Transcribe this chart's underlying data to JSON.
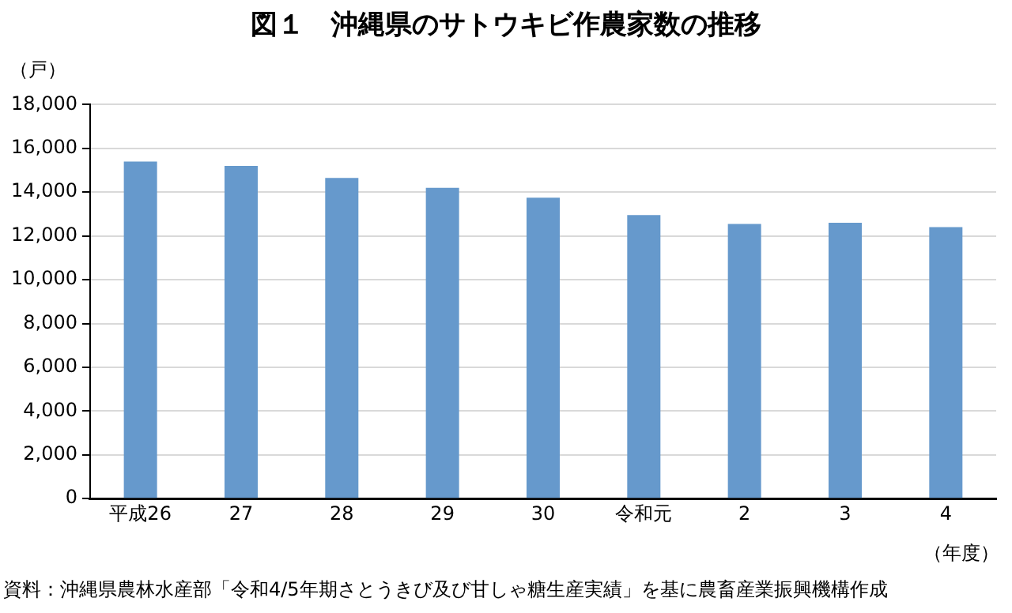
{
  "chart_data": {
    "type": "bar",
    "title": "図１　沖縄県のサトウキビ作農家数の推移",
    "ylabel": "（戸）",
    "xlabel": "（年度）",
    "annotations": [
      "資料：沖縄県農林水産部「令和4/5年期さとうきび及び甘しゃ糖生産実績」を基に農畜産業振興機構作成"
    ],
    "categories": [
      "平成26",
      "27",
      "28",
      "29",
      "30",
      "令和元",
      "2",
      "3",
      "4"
    ],
    "values": [
      15400,
      15200,
      14650,
      14200,
      13750,
      12950,
      12550,
      12600,
      12400
    ],
    "color": "#6699cc",
    "ylim": [
      0,
      18000
    ],
    "yticks": [
      {
        "value": 0,
        "label": "0"
      },
      {
        "value": 2000,
        "label": "2,000"
      },
      {
        "value": 4000,
        "label": "4,000"
      },
      {
        "value": 6000,
        "label": "6,000"
      },
      {
        "value": 8000,
        "label": "8,000"
      },
      {
        "value": 10000,
        "label": "10,000"
      },
      {
        "value": 12000,
        "label": "12,000"
      },
      {
        "value": 14000,
        "label": "14,000"
      },
      {
        "value": 16000,
        "label": "16,000"
      },
      {
        "value": 18000,
        "label": "18,000"
      }
    ],
    "grid": "y",
    "legend": false
  }
}
